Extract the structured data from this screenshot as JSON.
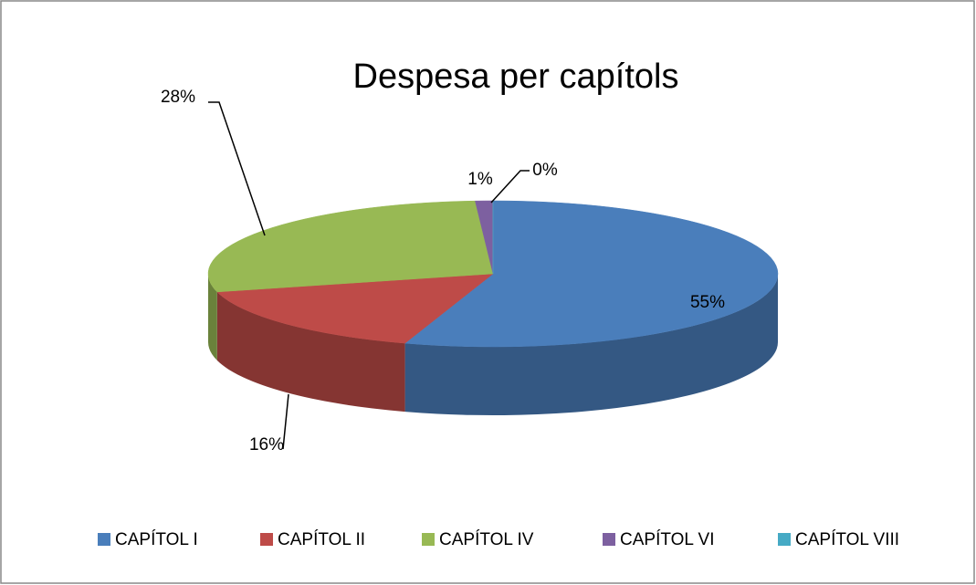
{
  "chart_data": {
    "type": "pie",
    "title": "Despesa per capítols",
    "categories": [
      "CAPÍTOL I",
      "CAPÍTOL II",
      "CAPÍTOL IV",
      "CAPÍTOL VI",
      "CAPÍTOL VIII"
    ],
    "values": [
      55,
      16,
      28,
      1,
      0
    ],
    "value_labels": [
      "55%",
      "16%",
      "28%",
      "1%",
      "0%"
    ],
    "colors": [
      "#4a7ebb",
      "#be4b48",
      "#98b954",
      "#7d60a0",
      "#46aac5"
    ],
    "legend": "bottom"
  }
}
